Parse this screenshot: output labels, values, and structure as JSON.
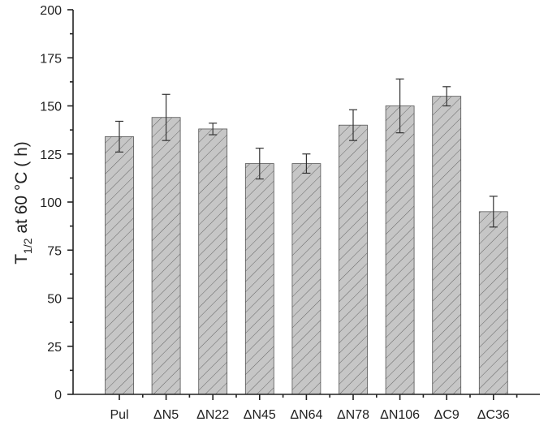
{
  "chart_data": {
    "type": "bar",
    "categories": [
      "Pul",
      "ΔN5",
      "ΔN22",
      "ΔN45",
      "ΔN64",
      "ΔN78",
      "ΔN106",
      "ΔC9",
      "ΔC36"
    ],
    "values": [
      134,
      144,
      138,
      120,
      120,
      140,
      150,
      155,
      95
    ],
    "errors": [
      8,
      12,
      3,
      8,
      5,
      8,
      14,
      5,
      8
    ],
    "title": "",
    "xlabel": "",
    "ylabel": {
      "base": "T",
      "subscript": "1/2",
      "rest": " at 60 °C ( h)"
    },
    "ylim": [
      0,
      200
    ],
    "yticks": [
      0,
      25,
      50,
      75,
      100,
      125,
      150,
      175,
      200
    ],
    "grid": false,
    "bar_fill": "#c6c6c6",
    "hatch_color": "#666666"
  }
}
